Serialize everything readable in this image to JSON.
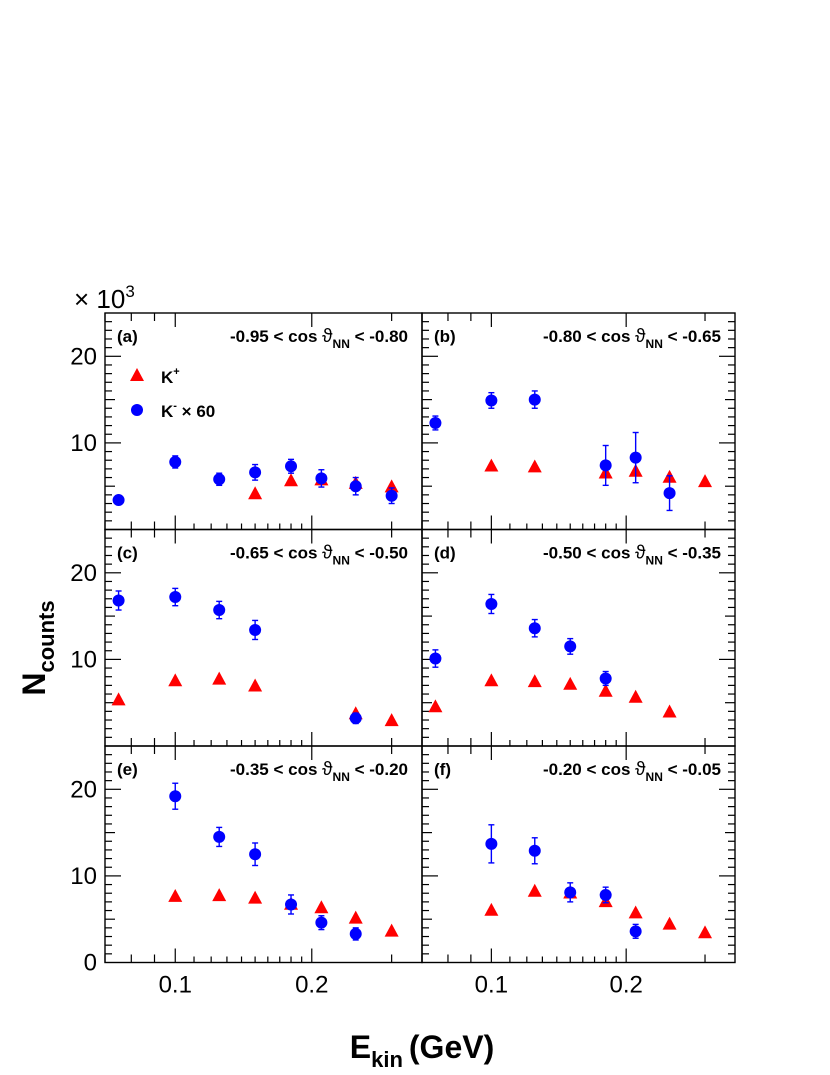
{
  "chart_data": {
    "type": "scatter",
    "title": "",
    "xlabel": "E",
    "xlabel_sub": "kin",
    "xlabel_unit": "(GeV)",
    "ylabel": "N",
    "ylabel_sub": "counts",
    "y_multiplier": "× 10",
    "y_multiplier_exp": "3",
    "xscale": "log",
    "xlim": [
      0.07,
      0.35
    ],
    "ylim": [
      0,
      25
    ],
    "x_ticks": [
      0.1,
      0.2
    ],
    "x_tick_labels": [
      "0.1",
      "0.2"
    ],
    "y_ticks": [
      10,
      20
    ],
    "y_tick_labels": [
      "10",
      "20"
    ],
    "y_zero_label": "0",
    "legend": {
      "placement": "top-left of panel (a)",
      "entries": [
        {
          "marker": "triangle",
          "color": "#ff0000",
          "label": "K",
          "sup": "+",
          "suffix": ""
        },
        {
          "marker": "circle",
          "color": "#0000ff",
          "label": "K",
          "sup": "-",
          "suffix": " × 60"
        }
      ]
    },
    "colors": {
      "kplus": "#ff0000",
      "kminus": "#0000ff",
      "kminus_err": "#0000ff"
    },
    "panels": [
      {
        "tag": "(a)",
        "range_low": "-0.95",
        "range_high": "-0.80",
        "kplus": [
          [
            0.15,
            4.1
          ],
          [
            0.18,
            5.6
          ],
          [
            0.21,
            5.7
          ],
          [
            0.25,
            5.3
          ],
          [
            0.3,
            4.9
          ]
        ],
        "kminus": [
          [
            0.075,
            3.4,
            0.3
          ],
          [
            0.1,
            7.8,
            0.7
          ],
          [
            0.125,
            5.8,
            0.7
          ],
          [
            0.15,
            6.6,
            0.9
          ],
          [
            0.18,
            7.3,
            0.8
          ],
          [
            0.21,
            5.9,
            1.0
          ],
          [
            0.25,
            5.0,
            1.0
          ],
          [
            0.3,
            3.9,
            0.9
          ]
        ]
      },
      {
        "tag": "(b)",
        "range_low": "-0.80",
        "range_high": "-0.65",
        "kplus": [
          [
            0.1,
            7.3
          ],
          [
            0.125,
            7.2
          ],
          [
            0.18,
            6.5
          ],
          [
            0.21,
            6.7
          ],
          [
            0.25,
            6.0
          ],
          [
            0.3,
            5.5
          ]
        ],
        "kminus": [
          [
            0.075,
            12.3,
            0.8
          ],
          [
            0.1,
            14.9,
            0.9
          ],
          [
            0.125,
            15.0,
            1.0
          ],
          [
            0.18,
            7.4,
            2.3
          ],
          [
            0.21,
            8.3,
            2.9
          ],
          [
            0.25,
            4.2,
            2.0
          ]
        ]
      },
      {
        "tag": "(c)",
        "range_low": "-0.65",
        "range_high": "-0.50",
        "kplus": [
          [
            0.075,
            5.3
          ],
          [
            0.1,
            7.5
          ],
          [
            0.125,
            7.7
          ],
          [
            0.15,
            6.9
          ],
          [
            0.25,
            3.7
          ],
          [
            0.3,
            2.9
          ]
        ],
        "kminus": [
          [
            0.075,
            16.8,
            1.1
          ],
          [
            0.1,
            17.2,
            1.0
          ],
          [
            0.125,
            15.7,
            1.0
          ],
          [
            0.15,
            13.4,
            1.1
          ],
          [
            0.25,
            3.2,
            0.6
          ]
        ]
      },
      {
        "tag": "(d)",
        "range_low": "-0.50",
        "range_high": "-0.35",
        "kplus": [
          [
            0.075,
            4.5
          ],
          [
            0.1,
            7.5
          ],
          [
            0.125,
            7.4
          ],
          [
            0.15,
            7.1
          ],
          [
            0.18,
            6.3
          ],
          [
            0.21,
            5.6
          ],
          [
            0.25,
            3.9
          ]
        ],
        "kminus": [
          [
            0.075,
            10.1,
            1.0
          ],
          [
            0.1,
            16.4,
            1.1
          ],
          [
            0.125,
            13.6,
            1.0
          ],
          [
            0.15,
            11.5,
            0.9
          ],
          [
            0.18,
            7.8,
            0.8
          ]
        ]
      },
      {
        "tag": "(e)",
        "range_low": "-0.35",
        "range_high": "-0.20",
        "kplus": [
          [
            0.1,
            7.6
          ],
          [
            0.125,
            7.7
          ],
          [
            0.15,
            7.4
          ],
          [
            0.18,
            6.7
          ],
          [
            0.21,
            6.3
          ],
          [
            0.25,
            5.1
          ],
          [
            0.3,
            3.6
          ]
        ],
        "kminus": [
          [
            0.1,
            19.2,
            1.5
          ],
          [
            0.125,
            14.5,
            1.1
          ],
          [
            0.15,
            12.5,
            1.3
          ],
          [
            0.18,
            6.7,
            1.1
          ],
          [
            0.21,
            4.6,
            0.8
          ],
          [
            0.25,
            3.3,
            0.7
          ]
        ]
      },
      {
        "tag": "(f)",
        "range_low": "-0.20",
        "range_high": "-0.05",
        "kplus": [
          [
            0.1,
            6.0
          ],
          [
            0.125,
            8.2
          ],
          [
            0.15,
            8.0
          ],
          [
            0.18,
            7.0
          ],
          [
            0.21,
            5.7
          ],
          [
            0.25,
            4.4
          ],
          [
            0.3,
            3.4
          ]
        ],
        "kminus": [
          [
            0.1,
            13.7,
            2.2
          ],
          [
            0.125,
            12.9,
            1.5
          ],
          [
            0.15,
            8.1,
            1.1
          ],
          [
            0.18,
            7.8,
            0.9
          ],
          [
            0.21,
            3.6,
            0.8
          ]
        ]
      }
    ],
    "range_prefix": " < cos ",
    "range_theta": "ϑ",
    "range_theta_sub": "NN",
    "range_suffix": " < "
  }
}
